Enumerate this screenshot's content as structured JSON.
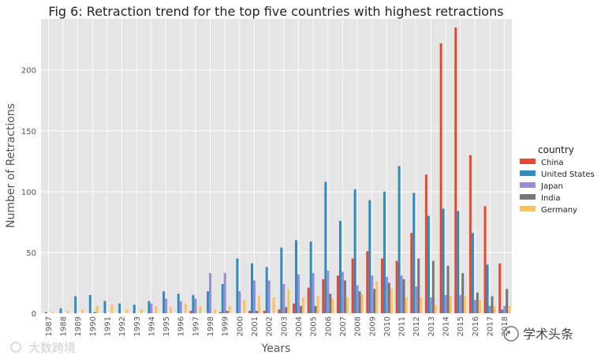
{
  "chart_data": {
    "type": "bar",
    "title": "Fig 6: Retraction trend for the top five countries with highest retractions",
    "xlabel": "Years",
    "ylabel": "Number of Retractions",
    "ylim": [
      0,
      242
    ],
    "yticks": [
      0,
      50,
      100,
      150,
      200
    ],
    "grid": true,
    "legend_title": "country",
    "legend_position": "right",
    "categories": [
      "1987",
      "1988",
      "1989",
      "1990",
      "1991",
      "1992",
      "1993",
      "1994",
      "1995",
      "1996",
      "1997",
      "1998",
      "1999",
      "2000",
      "2001",
      "2002",
      "2003",
      "2004",
      "2005",
      "2006",
      "2007",
      "2008",
      "2009",
      "2010",
      "2011",
      "2012",
      "2013",
      "2014",
      "2015",
      "2016",
      "2017",
      "2018"
    ],
    "series": [
      {
        "name": "China",
        "color": "#E24A33",
        "values": [
          0,
          0,
          0,
          0,
          0,
          0,
          0,
          0,
          0,
          0,
          2,
          0,
          1,
          0,
          2,
          2,
          3,
          8,
          21,
          28,
          31,
          45,
          51,
          45,
          43,
          66,
          114,
          222,
          235,
          130,
          88,
          41
        ]
      },
      {
        "name": "United States",
        "color": "#348ABD",
        "values": [
          1,
          4,
          14,
          15,
          10,
          8,
          7,
          10,
          18,
          16,
          15,
          18,
          24,
          45,
          41,
          38,
          54,
          60,
          59,
          108,
          76,
          102,
          93,
          100,
          121,
          99,
          80,
          86,
          84,
          66,
          40,
          3
        ]
      },
      {
        "name": "Japan",
        "color": "#988ED5",
        "values": [
          0,
          0,
          0,
          0,
          0,
          0,
          0,
          8,
          12,
          10,
          12,
          33,
          33,
          18,
          27,
          27,
          24,
          32,
          33,
          35,
          34,
          23,
          31,
          30,
          31,
          22,
          13,
          15,
          15,
          11,
          6,
          6
        ]
      },
      {
        "name": "India",
        "color": "#777777",
        "values": [
          0,
          0,
          0,
          1,
          0,
          0,
          0,
          0,
          0,
          0,
          0,
          0,
          2,
          0,
          2,
          0,
          5,
          6,
          6,
          16,
          27,
          18,
          20,
          25,
          28,
          45,
          43,
          39,
          33,
          17,
          14,
          20
        ]
      },
      {
        "name": "Germany",
        "color": "#FBC15E",
        "values": [
          1,
          2,
          3,
          6,
          7,
          3,
          3,
          6,
          5,
          8,
          6,
          3,
          6,
          11,
          14,
          13,
          20,
          13,
          14,
          12,
          13,
          16,
          26,
          20,
          13,
          13,
          7,
          14,
          14,
          11,
          6,
          6
        ]
      }
    ]
  },
  "watermarks": {
    "left": "大数跨境",
    "right": "学术头条"
  }
}
